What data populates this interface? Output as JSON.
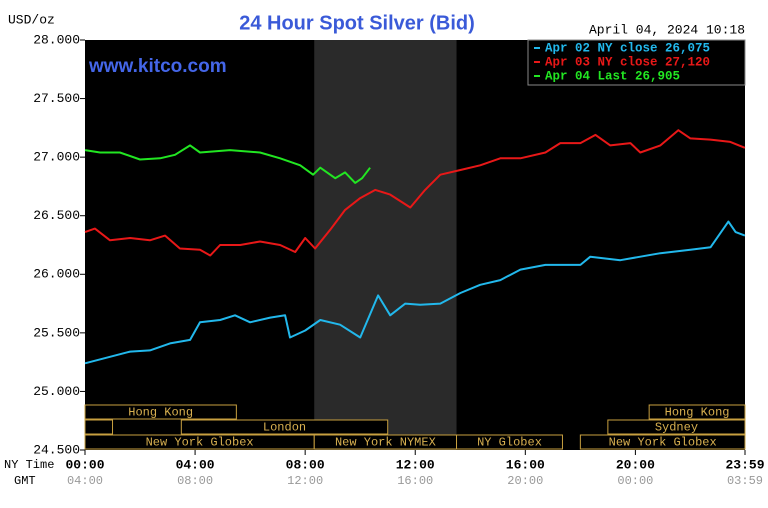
{
  "chart_data": {
    "type": "line",
    "title": "24 Hour Spot Silver (Bid)",
    "y_unit": "USD/oz",
    "timestamp": "April 04, 2024 10:18",
    "watermark": "www.kitco.com",
    "x_label": "NY Time",
    "x2_label": "GMT",
    "xlim": [
      0,
      23.983
    ],
    "xticks": [
      {
        "value": 0,
        "label": "00:00"
      },
      {
        "value": 4,
        "label": "04:00"
      },
      {
        "value": 8,
        "label": "08:00"
      },
      {
        "value": 12,
        "label": "12:00"
      },
      {
        "value": 16,
        "label": "16:00"
      },
      {
        "value": 20,
        "label": "20:00"
      },
      {
        "value": 23.983,
        "label": "23:59"
      }
    ],
    "x2ticks": [
      "04:00",
      "08:00",
      "12:00",
      "16:00",
      "20:00",
      "00:00",
      "03:59"
    ],
    "ylim": [
      24.5,
      28
    ],
    "yticks": [
      {
        "value": 24.5,
        "label": "24.500"
      },
      {
        "value": 25,
        "label": "25.000"
      },
      {
        "value": 25.5,
        "label": "25.500"
      },
      {
        "value": 26,
        "label": "26.000"
      },
      {
        "value": 26.5,
        "label": "26.500"
      },
      {
        "value": 27,
        "label": "27.000"
      },
      {
        "value": 27.5,
        "label": "27.500"
      },
      {
        "value": 28,
        "label": "28.000"
      }
    ],
    "shade": [
      8.33,
      13.5
    ],
    "sessions": [
      [
        {
          "label": "Hong Kong",
          "start": 0,
          "end": 5.5
        },
        {
          "label": "Hong Kong",
          "start": 20.5,
          "end": 23.983
        }
      ],
      [
        {
          "label": null,
          "start": 0,
          "end": 1
        },
        {
          "label": "London",
          "start": 3.5,
          "end": 11
        },
        {
          "label": "Sydney",
          "start": 19,
          "end": 23.983
        }
      ],
      [
        {
          "label": "New York Globex",
          "start": 0,
          "end": 8.33
        },
        {
          "label": "New York NYMEX",
          "start": 8.33,
          "end": 13.5
        },
        {
          "label": "NY Globex",
          "start": 13.5,
          "end": 17.35
        },
        {
          "label": "New York Globex",
          "start": 18,
          "end": 23.983
        }
      ]
    ],
    "series": [
      {
        "name": "Apr 02 NY close 26,075",
        "color": "#22b8ec",
        "x": [
          0,
          1.64,
          2.36,
          3.09,
          3.82,
          4.18,
          4.91,
          5.45,
          6.0,
          6.73,
          7.27,
          7.45,
          8.0,
          8.55,
          9.27,
          10.0,
          10.65,
          11.09,
          11.64,
          12.18,
          12.91,
          13.64,
          14.36,
          15.09,
          15.82,
          16.73,
          18.0,
          18.36,
          19.45,
          20.18,
          20.91,
          22.0,
          22.73,
          23.38,
          23.64,
          23.98
        ],
        "values": [
          25.24,
          25.34,
          25.35,
          25.41,
          25.44,
          25.59,
          25.61,
          25.65,
          25.59,
          25.63,
          25.65,
          25.46,
          25.52,
          25.61,
          25.57,
          25.46,
          25.82,
          25.65,
          25.75,
          25.74,
          25.75,
          25.84,
          25.91,
          25.95,
          26.04,
          26.08,
          26.08,
          26.15,
          26.12,
          26.15,
          26.18,
          26.21,
          26.23,
          26.45,
          26.36,
          26.33
        ]
      },
      {
        "name": "Apr 03 NY close 27,120",
        "color": "#e81818",
        "x": [
          0,
          0.36,
          0.91,
          1.64,
          2.36,
          2.91,
          3.45,
          4.18,
          4.55,
          4.91,
          5.64,
          6.36,
          7.09,
          7.64,
          8.0,
          8.36,
          8.91,
          9.45,
          10.0,
          10.55,
          11.09,
          11.82,
          12.36,
          12.91,
          13.64,
          14.36,
          15.09,
          15.82,
          16.73,
          17.27,
          18.0,
          18.55,
          19.09,
          19.82,
          20.18,
          20.91,
          21.56,
          22.0,
          22.73,
          23.45,
          23.98
        ],
        "values": [
          26.36,
          26.39,
          26.29,
          26.31,
          26.29,
          26.33,
          26.22,
          26.21,
          26.16,
          26.25,
          26.25,
          26.28,
          26.25,
          26.19,
          26.31,
          26.22,
          26.38,
          26.55,
          26.65,
          26.72,
          26.68,
          26.57,
          26.72,
          26.85,
          26.89,
          26.93,
          26.99,
          26.99,
          27.04,
          27.12,
          27.12,
          27.19,
          27.1,
          27.12,
          27.04,
          27.1,
          27.23,
          27.16,
          27.15,
          27.13,
          27.08
        ]
      },
      {
        "name": "Apr 04 Last 26,905",
        "color": "#22e622",
        "x": [
          0,
          0.55,
          1.27,
          2.0,
          2.73,
          3.27,
          3.82,
          4.18,
          5.27,
          6.36,
          7.09,
          7.82,
          8.29,
          8.55,
          9.09,
          9.45,
          9.82,
          10.07,
          10.36
        ],
        "values": [
          27.06,
          27.04,
          27.04,
          26.98,
          26.99,
          27.02,
          27.1,
          27.04,
          27.06,
          27.04,
          26.99,
          26.93,
          26.85,
          26.91,
          26.82,
          26.87,
          26.78,
          26.82,
          26.91
        ]
      }
    ]
  }
}
